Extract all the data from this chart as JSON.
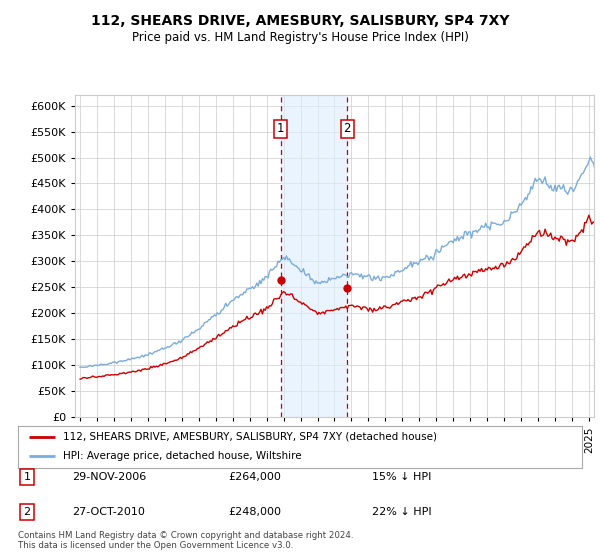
{
  "title": "112, SHEARS DRIVE, AMESBURY, SALISBURY, SP4 7XY",
  "subtitle": "Price paid vs. HM Land Registry's House Price Index (HPI)",
  "legend_line1": "112, SHEARS DRIVE, AMESBURY, SALISBURY, SP4 7XY (detached house)",
  "legend_line2": "HPI: Average price, detached house, Wiltshire",
  "transaction1_date": "29-NOV-2006",
  "transaction1_price": 264000,
  "transaction1_pct": "15% ↓ HPI",
  "transaction1_year": 2006,
  "transaction1_month": 11,
  "transaction2_date": "27-OCT-2010",
  "transaction2_price": 248000,
  "transaction2_pct": "22% ↓ HPI",
  "transaction2_year": 2010,
  "transaction2_month": 10,
  "red_color": "#cc0000",
  "blue_color": "#7aacdc",
  "vline_color": "#cc0000",
  "shade_color": "#ddeeff",
  "grid_color": "#cccccc",
  "bg_color": "#ffffff",
  "ylim_max": 620000,
  "ytick_step": 50000,
  "footnote": "Contains HM Land Registry data © Crown copyright and database right 2024.\nThis data is licensed under the Open Government Licence v3.0.",
  "start_year": 1995,
  "end_year": 2025
}
